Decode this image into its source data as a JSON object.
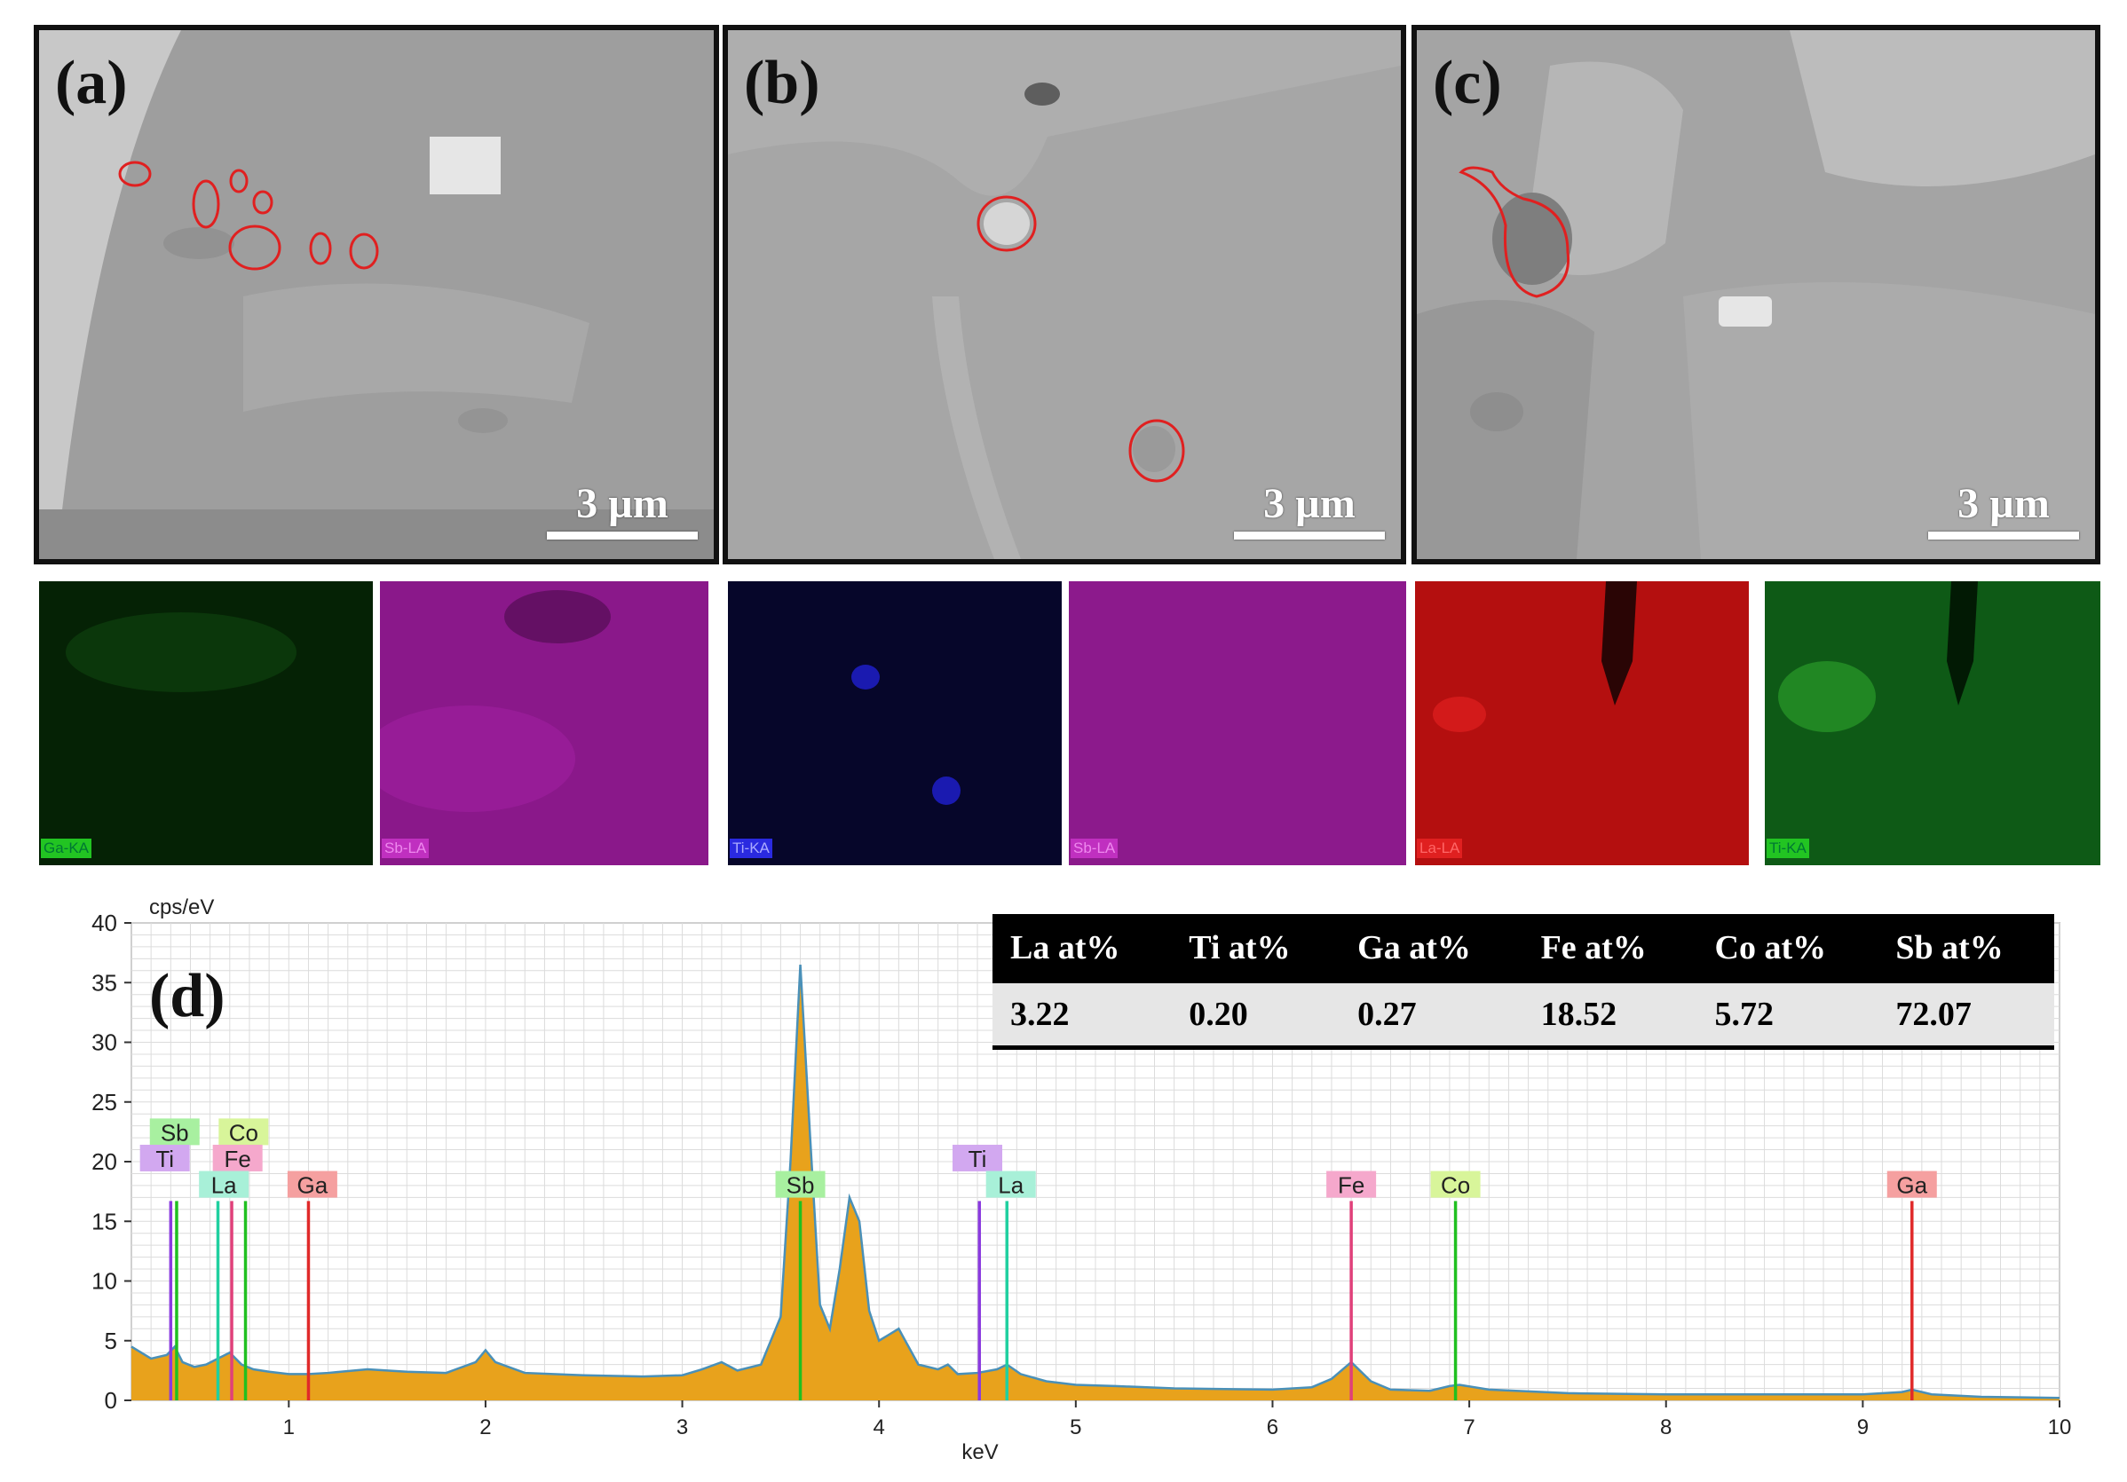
{
  "panels": [
    {
      "label": "(a)",
      "scale": "3 µm"
    },
    {
      "label": "(b)",
      "scale": "3 µm"
    },
    {
      "label": "(c)",
      "scale": "3 µm"
    }
  ],
  "maps": [
    {
      "tag": "Ga-KA",
      "color": "#1a8a1a",
      "tag_bg": "#22c422"
    },
    {
      "tag": "Sb-LA",
      "color": "#b020b0",
      "tag_bg": "#c030c0"
    },
    {
      "tag": "Ti-KA",
      "color": "#1a1ad0",
      "tag_bg": "#2a2ae0"
    },
    {
      "tag": "Sb-LA",
      "color": "#b020b0",
      "tag_bg": "#c030c0"
    },
    {
      "tag": "La-LA",
      "color": "#d01010",
      "tag_bg": "#e02020"
    },
    {
      "tag": "Ti-KA",
      "color": "#1a8a1a",
      "tag_bg": "#22c422"
    }
  ],
  "table": {
    "headers": [
      "La at%",
      "Ti at%",
      "Ga at%",
      "Fe at%",
      "Co at%",
      "Sb at%"
    ],
    "values": [
      "3.22",
      "0.20",
      "0.27",
      "18.52",
      "5.72",
      "72.07"
    ]
  },
  "chart_data": {
    "type": "area",
    "panel_label": "(d)",
    "ylabel": "cps/eV",
    "xlabel": "keV",
    "xlim": [
      0.2,
      10
    ],
    "ylim": [
      0,
      40
    ],
    "xticks": [
      1,
      2,
      3,
      4,
      5,
      6,
      7,
      8,
      9,
      10
    ],
    "yticks": [
      0,
      5,
      10,
      15,
      20,
      25,
      30,
      35,
      40
    ],
    "grid": true,
    "spectrum": {
      "x": [
        0.2,
        0.3,
        0.38,
        0.42,
        0.46,
        0.52,
        0.58,
        0.64,
        0.7,
        0.76,
        0.82,
        0.9,
        1.0,
        1.1,
        1.2,
        1.4,
        1.6,
        1.8,
        1.95,
        2.0,
        2.05,
        2.2,
        2.5,
        2.8,
        3.0,
        3.1,
        3.2,
        3.28,
        3.4,
        3.5,
        3.55,
        3.6,
        3.65,
        3.7,
        3.75,
        3.8,
        3.85,
        3.9,
        3.95,
        4.0,
        4.05,
        4.1,
        4.15,
        4.2,
        4.3,
        4.35,
        4.4,
        4.5,
        4.6,
        4.65,
        4.72,
        4.85,
        5.0,
        5.2,
        5.5,
        6.0,
        6.2,
        6.3,
        6.4,
        6.5,
        6.6,
        6.8,
        6.9,
        6.95,
        7.1,
        7.5,
        8.0,
        8.5,
        9.0,
        9.2,
        9.25,
        9.35,
        9.6,
        10.0
      ],
      "y": [
        4.5,
        3.5,
        3.8,
        4.5,
        3.2,
        2.8,
        3.0,
        3.5,
        4.0,
        3.0,
        2.6,
        2.4,
        2.2,
        2.2,
        2.3,
        2.6,
        2.4,
        2.3,
        3.2,
        4.2,
        3.2,
        2.3,
        2.1,
        2.0,
        2.1,
        2.6,
        3.2,
        2.5,
        3.0,
        7.0,
        20.0,
        36.5,
        22.0,
        8.0,
        6.0,
        11.0,
        17.0,
        15.0,
        7.5,
        5.0,
        5.5,
        6.0,
        4.5,
        3.0,
        2.6,
        3.0,
        2.2,
        2.3,
        2.6,
        3.0,
        2.2,
        1.6,
        1.3,
        1.2,
        1.0,
        0.9,
        1.1,
        1.8,
        3.2,
        1.6,
        0.9,
        0.8,
        1.2,
        1.3,
        0.9,
        0.6,
        0.5,
        0.5,
        0.5,
        0.7,
        0.9,
        0.5,
        0.3,
        0.2
      ]
    },
    "element_lines": [
      {
        "element": "Ti",
        "x": 0.4,
        "height": 16.7,
        "color": "#8a3adf"
      },
      {
        "element": "Sb",
        "x": 0.43,
        "height": 16.7,
        "color": "#20c020"
      },
      {
        "element": "La",
        "x": 0.64,
        "height": 16.7,
        "color": "#20d0a0"
      },
      {
        "element": "Fe",
        "x": 0.71,
        "height": 16.7,
        "color": "#e0407a"
      },
      {
        "element": "Co",
        "x": 0.78,
        "height": 16.7,
        "color": "#20c020"
      },
      {
        "element": "Ga",
        "x": 1.1,
        "height": 16.7,
        "color": "#e02a2a"
      },
      {
        "element": "Sb",
        "x": 3.6,
        "height": 16.7,
        "color": "#20c020"
      },
      {
        "element": "Ti",
        "x": 4.51,
        "height": 16.7,
        "color": "#8a3adf"
      },
      {
        "element": "La",
        "x": 4.65,
        "height": 16.7,
        "color": "#20d0a0"
      },
      {
        "element": "Fe",
        "x": 6.4,
        "height": 16.7,
        "color": "#e0407a"
      },
      {
        "element": "Co",
        "x": 6.93,
        "height": 16.7,
        "color": "#20c020"
      },
      {
        "element": "Ga",
        "x": 9.25,
        "height": 16.7,
        "color": "#e02a2a"
      }
    ],
    "element_labels": [
      {
        "text": "Sb",
        "x": 0.42,
        "y": 22.5,
        "bg": "#a8f0a0"
      },
      {
        "text": "Co",
        "x": 0.77,
        "y": 22.5,
        "bg": "#d8f59a"
      },
      {
        "text": "Ti",
        "x": 0.37,
        "y": 20.3,
        "bg": "#d2a8f0"
      },
      {
        "text": "Fe",
        "x": 0.74,
        "y": 20.3,
        "bg": "#f5a8cc"
      },
      {
        "text": "La",
        "x": 0.67,
        "y": 18.1,
        "bg": "#a8f0d8"
      },
      {
        "text": "Ga",
        "x": 1.12,
        "y": 18.1,
        "bg": "#f5a0a0"
      },
      {
        "text": "Sb",
        "x": 3.6,
        "y": 18.1,
        "bg": "#a8f0a0"
      },
      {
        "text": "Ti",
        "x": 4.5,
        "y": 20.3,
        "bg": "#d2a8f0"
      },
      {
        "text": "La",
        "x": 4.67,
        "y": 18.1,
        "bg": "#a8f0d8"
      },
      {
        "text": "Fe",
        "x": 6.4,
        "y": 18.1,
        "bg": "#f5a8cc"
      },
      {
        "text": "Co",
        "x": 6.93,
        "y": 18.1,
        "bg": "#d8f59a"
      },
      {
        "text": "Ga",
        "x": 9.25,
        "y": 18.1,
        "bg": "#f5a0a0"
      }
    ],
    "spectrum_color": "#e8a21c",
    "spectrum_outline": "#4a90b8"
  }
}
